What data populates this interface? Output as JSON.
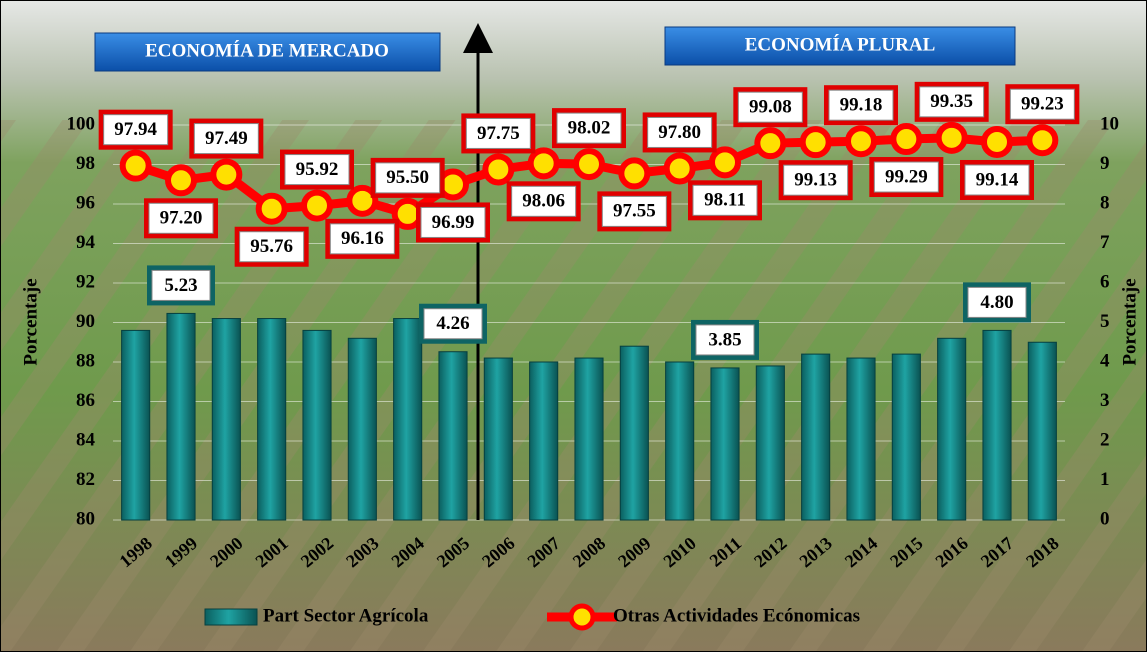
{
  "chart_data": {
    "type": "bar-line",
    "annotations": [
      "ECONOMÍA DE MERCADO",
      "ECONOMÍA PLURAL"
    ],
    "ylabel": "Porcentaje",
    "y2label": "Porcentaje",
    "categories": [
      "1998",
      "1999",
      "2000",
      "2001",
      "2002",
      "2003",
      "2004",
      "2005",
      "2006",
      "2007",
      "2008",
      "2009",
      "2010",
      "2011",
      "2012",
      "2013",
      "2014",
      "2015",
      "2016",
      "2017",
      "2018"
    ],
    "series": [
      {
        "name": "Part Sector Agrícola",
        "color": "#1a8a8a",
        "kind": "bar",
        "axis": "y2",
        "values": [
          4.8,
          5.23,
          5.1,
          5.1,
          4.8,
          4.6,
          5.1,
          4.26,
          4.1,
          4.0,
          4.1,
          4.4,
          4.0,
          3.85,
          3.9,
          4.2,
          4.1,
          4.2,
          4.6,
          4.8,
          4.5
        ],
        "value_labels": [
          null,
          "5.23",
          null,
          null,
          null,
          null,
          null,
          "4.26",
          null,
          null,
          null,
          null,
          null,
          "3.85",
          null,
          null,
          null,
          null,
          null,
          "4.80",
          null
        ]
      },
      {
        "name": "Otras Actividades Ecónomicas",
        "color": "#ff0000",
        "kind": "line",
        "values": [
          97.94,
          97.2,
          97.49,
          95.76,
          95.92,
          96.16,
          95.5,
          96.99,
          97.75,
          98.06,
          98.02,
          97.55,
          97.8,
          98.11,
          99.08,
          99.13,
          99.18,
          99.29,
          99.35,
          99.14,
          99.23
        ],
        "value_labels": [
          "97.94",
          "97.20",
          "97.49",
          "95.76",
          "95.92",
          "96.16",
          "95.50",
          "96.99",
          "97.75",
          "98.06",
          "98.02",
          "97.55",
          "97.80",
          "98.11",
          "99.08",
          "99.13",
          "99.18",
          "99.29",
          "99.35",
          "99.14",
          "99.23"
        ]
      }
    ],
    "ylim": [
      80,
      100
    ],
    "yticks": [
      80,
      82,
      84,
      86,
      88,
      90,
      92,
      94,
      96,
      98,
      100
    ],
    "y2lim": [
      0,
      10
    ],
    "y2ticks": [
      0,
      1,
      2,
      3,
      4,
      5,
      6,
      7,
      8,
      9,
      10
    ],
    "grid": true
  }
}
